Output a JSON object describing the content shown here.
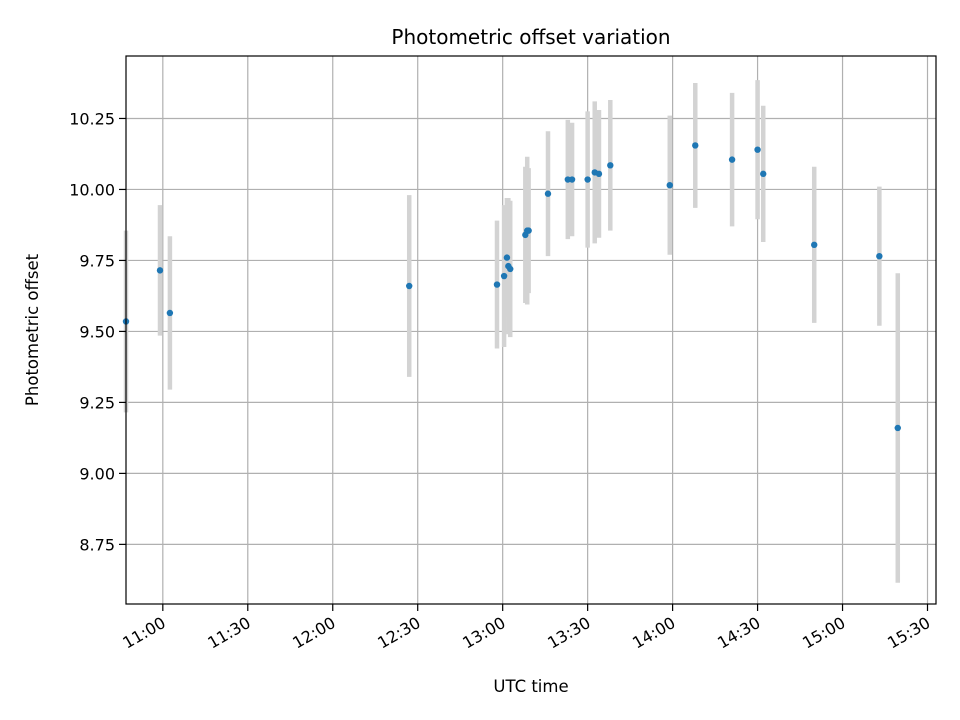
{
  "chart_data": {
    "type": "scatter",
    "title": "Photometric offset variation",
    "xlabel": "UTC time",
    "ylabel": "Photometric offset",
    "x_ticks": [
      "11:00",
      "11:30",
      "12:00",
      "12:30",
      "13:00",
      "13:30",
      "14:00",
      "14:30",
      "15:00",
      "15:30"
    ],
    "y_ticks": [
      "8.75",
      "9.00",
      "9.25",
      "9.50",
      "9.75",
      "10.00",
      "10.25"
    ],
    "xlim": [
      "10:47",
      "15:33"
    ],
    "ylim": [
      8.54,
      10.47
    ],
    "grid": true,
    "colors": {
      "points": "#1f77b4",
      "errorbars": "#d3d3d3",
      "grid": "#b0b0b0"
    },
    "points": [
      {
        "x": "10:47:00",
        "y": 9.535,
        "err": 0.32
      },
      {
        "x": "10:59:00",
        "y": 9.715,
        "err": 0.23
      },
      {
        "x": "11:02:30",
        "y": 9.565,
        "err": 0.27
      },
      {
        "x": "12:27:00",
        "y": 9.66,
        "err": 0.32
      },
      {
        "x": "12:58:00",
        "y": 9.665,
        "err": 0.225
      },
      {
        "x": "13:00:30",
        "y": 9.695,
        "err": 0.25
      },
      {
        "x": "13:01:30",
        "y": 9.76,
        "err": 0.21
      },
      {
        "x": "13:02:00",
        "y": 9.73,
        "err": 0.24
      },
      {
        "x": "13:02:40",
        "y": 9.72,
        "err": 0.24
      },
      {
        "x": "13:08:00",
        "y": 9.84,
        "err": 0.24
      },
      {
        "x": "13:08:40",
        "y": 9.855,
        "err": 0.26
      },
      {
        "x": "13:09:10",
        "y": 9.855,
        "err": 0.22
      },
      {
        "x": "13:16:00",
        "y": 9.985,
        "err": 0.22
      },
      {
        "x": "13:23:00",
        "y": 10.035,
        "err": 0.21
      },
      {
        "x": "13:24:30",
        "y": 10.035,
        "err": 0.2
      },
      {
        "x": "13:30:00",
        "y": 10.035,
        "err": 0.24
      },
      {
        "x": "13:32:30",
        "y": 10.06,
        "err": 0.25
      },
      {
        "x": "13:34:00",
        "y": 10.055,
        "err": 0.225
      },
      {
        "x": "13:38:00",
        "y": 10.085,
        "err": 0.23
      },
      {
        "x": "13:59:00",
        "y": 10.015,
        "err": 0.245
      },
      {
        "x": "14:08:00",
        "y": 10.155,
        "err": 0.22
      },
      {
        "x": "14:21:00",
        "y": 10.105,
        "err": 0.235
      },
      {
        "x": "14:30:00",
        "y": 10.14,
        "err": 0.245
      },
      {
        "x": "14:32:00",
        "y": 10.055,
        "err": 0.24
      },
      {
        "x": "14:50:00",
        "y": 9.805,
        "err": 0.275
      },
      {
        "x": "15:13:00",
        "y": 9.765,
        "err": 0.245
      },
      {
        "x": "15:19:30",
        "y": 9.16,
        "err": 0.545
      }
    ]
  }
}
